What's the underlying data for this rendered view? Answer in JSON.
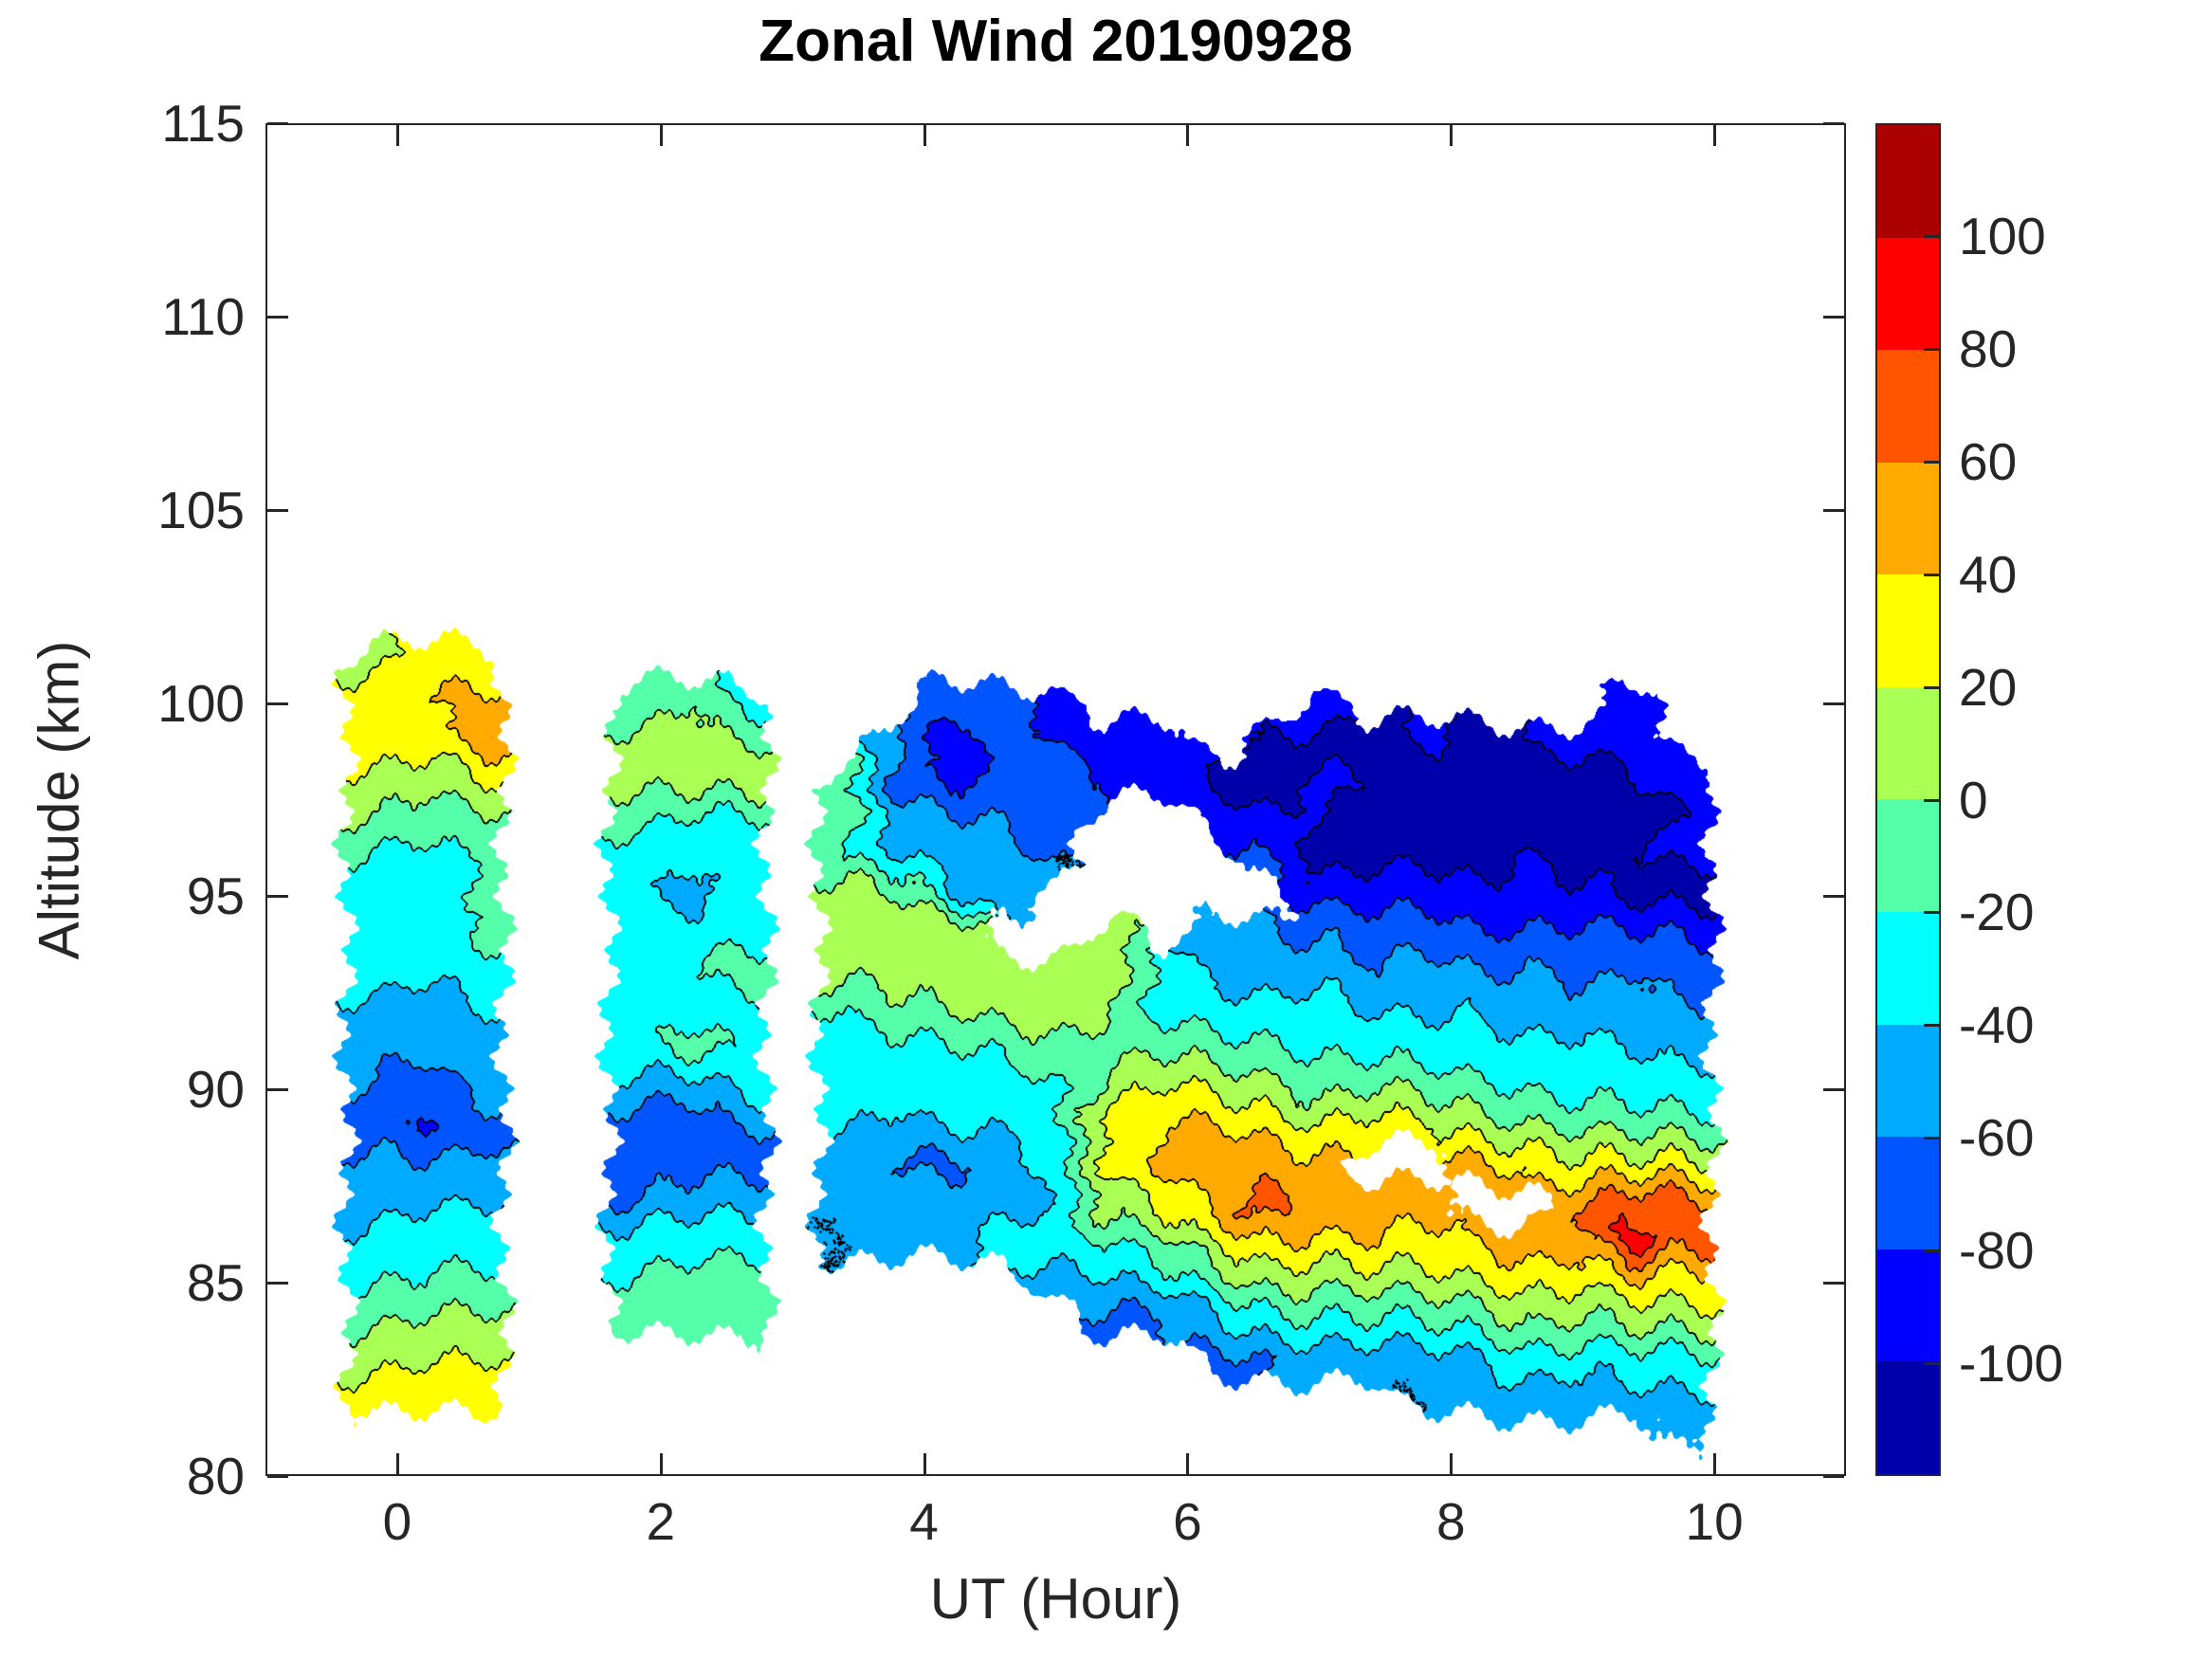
{
  "title": "Zonal Wind 20190928",
  "x_axis": {
    "label": "UT (Hour)",
    "range": [
      -1,
      11
    ],
    "ticks": [
      0,
      2,
      4,
      6,
      8,
      10
    ],
    "tick_labels": [
      "0",
      "2",
      "4",
      "6",
      "8",
      "10"
    ]
  },
  "y_axis": {
    "label": "Altitude (km)",
    "range": [
      80,
      115
    ],
    "ticks": [
      80,
      85,
      90,
      95,
      100,
      105,
      110,
      115
    ],
    "tick_labels": [
      "80",
      "85",
      "90",
      "95",
      "100",
      "105",
      "110",
      "115"
    ]
  },
  "colorbar": {
    "range": [
      -120,
      120
    ],
    "tick_values": [
      100,
      80,
      60,
      40,
      20,
      0,
      -20,
      -40,
      -60,
      -80,
      -100
    ],
    "tick_labels": [
      "100",
      "80",
      "60",
      "40",
      "20",
      "0",
      "-20",
      "-40",
      "-60",
      "-80",
      "-100"
    ],
    "band_colors_bottom_to_top": [
      "#0000AA",
      "#0000FF",
      "#0055FF",
      "#00AAFF",
      "#00FFFF",
      "#55FFAA",
      "#AAFF55",
      "#FFFF00",
      "#FFAA00",
      "#FF5500",
      "#FF0000",
      "#AA0000"
    ]
  },
  "chart_data": {
    "type": "filled_contour",
    "title": "Zonal Wind 20190928",
    "xlabel": "UT (Hour)",
    "ylabel": "Altitude (km)",
    "xlim": [
      -1,
      11
    ],
    "ylim": [
      80,
      115
    ],
    "levels": [
      -120,
      -100,
      -80,
      -60,
      -40,
      -20,
      0,
      20,
      40,
      60,
      80,
      100,
      120
    ],
    "palette": [
      "#0000AA",
      "#0000FF",
      "#0055FF",
      "#00AAFF",
      "#00FFFF",
      "#55FFAA",
      "#AAFF55",
      "#FFFF00",
      "#FFAA00",
      "#FF5500",
      "#FF0000",
      "#AA0000"
    ],
    "line_color": "#000000",
    "x": [
      -0.2,
      0.2,
      0.6,
      1.0,
      1.4,
      1.8,
      2.2,
      2.6,
      3.0,
      3.4,
      3.8,
      4.2,
      4.6,
      5.0,
      5.4,
      5.8,
      6.2,
      6.6,
      7.0,
      7.4,
      7.8,
      8.2,
      8.6,
      9.0,
      9.4,
      9.8
    ],
    "y": [
      81,
      82,
      83,
      84,
      85,
      86,
      87,
      88,
      89,
      90,
      91,
      92,
      93,
      94,
      95,
      96,
      97,
      98,
      99,
      100,
      101
    ],
    "z": [
      [
        null,
        null,
        null,
        null,
        null,
        null,
        null,
        null,
        null,
        null,
        null,
        null,
        null,
        null,
        null,
        null,
        null,
        null,
        null,
        null,
        null,
        null,
        null,
        null,
        null,
        -50
      ],
      [
        30,
        35,
        35,
        null,
        null,
        null,
        null,
        null,
        null,
        null,
        null,
        null,
        null,
        null,
        null,
        null,
        null,
        null,
        null,
        null,
        -60,
        -55,
        -50,
        -55,
        -45,
        -40
      ],
      [
        10,
        15,
        20,
        null,
        null,
        null,
        null,
        null,
        null,
        null,
        null,
        null,
        null,
        null,
        null,
        null,
        -65,
        -60,
        -55,
        -50,
        -45,
        -40,
        -30,
        -35,
        -25,
        -20
      ],
      [
        -5,
        0,
        5,
        null,
        null,
        -10,
        -20,
        -15,
        null,
        null,
        null,
        null,
        null,
        null,
        -65,
        -60,
        -40,
        -30,
        -25,
        -20,
        -15,
        -10,
        0,
        -5,
        10,
        15
      ],
      [
        -25,
        -20,
        -15,
        null,
        null,
        -20,
        -15,
        -10,
        null,
        null,
        null,
        null,
        null,
        -55,
        -45,
        -30,
        -10,
        5,
        0,
        10,
        15,
        20,
        25,
        20,
        40,
        35
      ],
      [
        -35,
        -30,
        -30,
        null,
        null,
        -30,
        -30,
        -25,
        null,
        -60,
        -50,
        -45,
        -35,
        -30,
        -20,
        -5,
        20,
        35,
        30,
        40,
        35,
        40,
        50,
        45,
        90,
        70
      ],
      [
        -50,
        -45,
        -40,
        null,
        null,
        -60,
        -50,
        -45,
        null,
        -60,
        -55,
        -55,
        -45,
        -40,
        5,
        25,
        45,
        70,
        55,
        55,
        50,
        null,
        null,
        60,
        75,
        60
      ],
      [
        -55,
        -60,
        -55,
        null,
        null,
        -75,
        -70,
        -65,
        null,
        -55,
        -60,
        -65,
        -55,
        -35,
        25,
        45,
        55,
        55,
        50,
        null,
        null,
        45,
        40,
        30,
        25,
        20
      ],
      [
        -70,
        -85,
        -65,
        null,
        null,
        -70,
        -75,
        -60,
        null,
        -40,
        -45,
        -35,
        -40,
        -20,
        35,
        40,
        40,
        35,
        25,
        30,
        20,
        10,
        5,
        0,
        -10,
        -15
      ],
      [
        -60,
        -70,
        -55,
        null,
        null,
        -45,
        -50,
        -35,
        null,
        -20,
        -30,
        -25,
        -30,
        -25,
        10,
        20,
        15,
        10,
        -5,
        0,
        -10,
        -15,
        -20,
        -25,
        -30,
        -35
      ],
      [
        -55,
        -55,
        -50,
        null,
        null,
        -25,
        -10,
        -20,
        null,
        -30,
        -25,
        -20,
        -20,
        -10,
        -15,
        -5,
        -10,
        -15,
        -20,
        -25,
        -30,
        -35,
        -30,
        -35,
        -40,
        -45
      ],
      [
        -45,
        -50,
        -40,
        null,
        null,
        -30,
        -30,
        -30,
        null,
        -25,
        -5,
        0,
        5,
        10,
        5,
        -30,
        -35,
        -30,
        -25,
        -40,
        -45,
        -40,
        -50,
        -45,
        -55,
        -60
      ],
      [
        -30,
        -35,
        -30,
        null,
        null,
        -25,
        -20,
        -10,
        null,
        5,
        10,
        15,
        20,
        15,
        15,
        -30,
        -45,
        -50,
        -45,
        -60,
        -50,
        -60,
        -55,
        -65,
        -60,
        -70
      ],
      [
        -30,
        -30,
        -15,
        null,
        null,
        -30,
        -30,
        -25,
        null,
        10,
        15,
        20,
        null,
        null,
        0,
        null,
        -55,
        -60,
        -60,
        -70,
        -75,
        -80,
        -70,
        -75,
        -80,
        -85
      ],
      [
        -25,
        -35,
        -20,
        null,
        null,
        -30,
        -55,
        -30,
        null,
        20,
        0,
        -40,
        -45,
        null,
        null,
        null,
        null,
        null,
        -80,
        -90,
        -85,
        -95,
        -100,
        -90,
        -105,
        -110
      ],
      [
        -20,
        -25,
        -20,
        null,
        null,
        -25,
        -30,
        -30,
        null,
        -20,
        -40,
        -50,
        -55,
        -60,
        null,
        null,
        null,
        -70,
        -110,
        -105,
        -110,
        -110,
        -95,
        -110,
        -100,
        -95
      ],
      [
        0,
        -10,
        -5,
        null,
        null,
        -15,
        -20,
        -25,
        null,
        -5,
        -50,
        -60,
        -60,
        -65,
        null,
        null,
        -90,
        -95,
        -100,
        -110,
        -105,
        -100,
        -110,
        -105,
        -110,
        -100
      ],
      [
        15,
        10,
        20,
        null,
        null,
        10,
        15,
        10,
        null,
        -15,
        -75,
        -90,
        -70,
        -75,
        -80,
        -90,
        -105,
        -110,
        -95,
        -100,
        -110,
        -110,
        -105,
        -110,
        -100,
        -90
      ],
      [
        35,
        30,
        50,
        null,
        null,
        5,
        10,
        0,
        null,
        null,
        -55,
        -95,
        -70,
        -80,
        -85,
        -85,
        null,
        -100,
        -105,
        -110,
        -95,
        -105,
        -100,
        -95,
        -90,
        null
      ],
      [
        30,
        40,
        45,
        null,
        null,
        -20,
        0,
        -25,
        null,
        null,
        null,
        -70,
        -75,
        -85,
        null,
        null,
        null,
        null,
        -90,
        null,
        null,
        null,
        null,
        null,
        -85,
        null
      ],
      [
        15,
        25,
        30,
        null,
        null,
        null,
        null,
        null,
        null,
        null,
        null,
        null,
        null,
        null,
        null,
        null,
        null,
        null,
        null,
        null,
        null,
        null,
        null,
        null,
        null,
        null
      ]
    ]
  }
}
